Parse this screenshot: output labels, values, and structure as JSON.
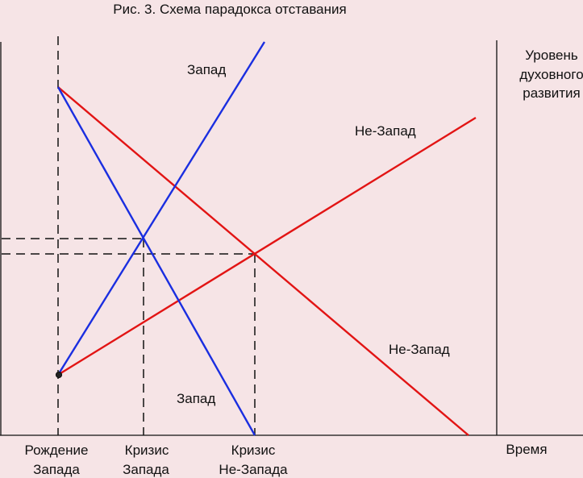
{
  "figure": {
    "caption": "Рис. 3. Схема парадокса отставания",
    "background": "#f6e4e6",
    "axes": {
      "y_label_lines": [
        "Уровень",
        "духовного",
        "развития"
      ],
      "x_label": "Время"
    },
    "milestones": [
      {
        "id": "birth-west",
        "label_lines": [
          "Рождение",
          "Запада"
        ]
      },
      {
        "id": "crisis-west",
        "label_lines": [
          "Кризис",
          "Запада"
        ]
      },
      {
        "id": "crisis-nonwest",
        "label_lines": [
          "Кризис",
          "Не-Запада"
        ]
      }
    ],
    "series_labels": {
      "west_rising": "Запад",
      "west_falling": "Запад",
      "nonwest_rising": "Не-Запад",
      "nonwest_falling": "Не-Запад"
    },
    "colors": {
      "west": "#1a2ee0",
      "nonwest": "#e21414",
      "axis": "#111111",
      "guide": "#111111"
    }
  }
}
